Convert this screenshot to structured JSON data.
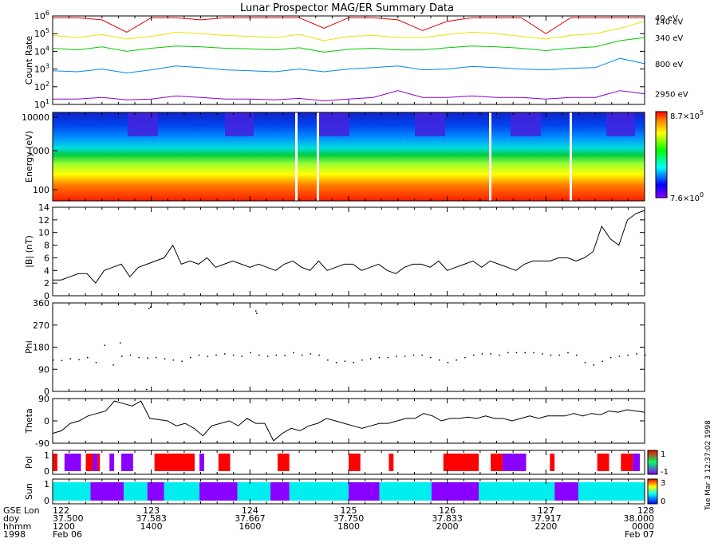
{
  "title": "Lunar Prospector MAG/ER Summary Data",
  "chart_data": [
    {
      "type": "line",
      "id": "count_rate",
      "ylabel": "Count Rate",
      "y_scale": "log",
      "ylim": [
        10,
        1000000
      ],
      "y_ticks": [
        {
          "base": "10",
          "exp": "1"
        },
        {
          "base": "10",
          "exp": "2"
        },
        {
          "base": "10",
          "exp": "3"
        },
        {
          "base": "10",
          "exp": "4"
        },
        {
          "base": "10",
          "exp": "5"
        },
        {
          "base": "10",
          "exp": "6"
        }
      ],
      "series": [
        {
          "name": "40 eV",
          "color": "#dd0000",
          "values": [
            800000,
            800000,
            600000,
            120000,
            800000,
            800000,
            600000,
            800000,
            800000,
            800000,
            800000,
            200000,
            800000,
            800000,
            600000,
            150000,
            500000,
            800000,
            800000,
            800000,
            100000,
            800000,
            800000,
            800000,
            800000
          ]
        },
        {
          "name": "140 eV",
          "color": "#e6e600",
          "values": [
            80000,
            60000,
            90000,
            50000,
            70000,
            120000,
            100000,
            80000,
            70000,
            60000,
            90000,
            40000,
            70000,
            80000,
            60000,
            60000,
            90000,
            120000,
            100000,
            70000,
            50000,
            80000,
            100000,
            200000,
            500000
          ]
        },
        {
          "name": "340 eV",
          "color": "#00cc00",
          "values": [
            15000,
            12000,
            18000,
            10000,
            15000,
            20000,
            18000,
            15000,
            14000,
            12000,
            16000,
            9000,
            13000,
            15000,
            12000,
            12000,
            16000,
            20000,
            18000,
            15000,
            11000,
            15000,
            18000,
            40000,
            60000
          ]
        },
        {
          "name": "800 eV",
          "color": "#0088ee",
          "values": [
            800,
            700,
            1000,
            600,
            900,
            1500,
            1200,
            900,
            800,
            700,
            1000,
            700,
            1000,
            1200,
            1500,
            900,
            1000,
            1400,
            1200,
            1000,
            900,
            1100,
            1200,
            4000,
            2000
          ]
        },
        {
          "name": "2950 eV",
          "color": "#8800cc",
          "values": [
            20,
            20,
            25,
            18,
            20,
            30,
            25,
            20,
            20,
            18,
            22,
            16,
            20,
            25,
            60,
            25,
            25,
            30,
            25,
            25,
            20,
            25,
            25,
            60,
            40
          ]
        }
      ]
    },
    {
      "type": "heatmap",
      "id": "energy_spectrogram",
      "ylabel": "Energy (eV)",
      "y_scale": "log",
      "y_tick_labels": [
        "100",
        "1000",
        "10000"
      ],
      "colorbar": {
        "max_base": "8.7×10",
        "max_exp": "5",
        "min_base": "7.6×10",
        "min_exp": "0"
      }
    },
    {
      "type": "line",
      "id": "B_magnitude",
      "ylabel": "|B| (nT)",
      "ylim": [
        0,
        14
      ],
      "y_tick_labels": [
        "0",
        "2",
        "4",
        "6",
        "8",
        "10",
        "12",
        "14"
      ],
      "values": [
        2.5,
        2.5,
        3,
        3.5,
        3.5,
        2,
        4,
        4.5,
        5,
        3,
        4.5,
        5,
        5.5,
        6,
        8,
        5,
        5.5,
        5,
        6,
        4.5,
        5,
        5.5,
        5,
        4.5,
        5,
        4.5,
        4,
        5,
        5.5,
        4.5,
        4,
        5.5,
        4,
        4.5,
        5,
        5,
        4,
        4.5,
        5,
        4,
        3.5,
        4.5,
        5,
        5,
        4.5,
        5.5,
        4,
        4.5,
        5,
        5.5,
        4.5,
        5.5,
        5,
        4.5,
        4,
        5,
        5.5,
        5.5,
        5.5,
        6,
        6,
        5.5,
        6,
        7,
        11,
        9,
        8,
        12,
        13,
        13.5
      ]
    },
    {
      "type": "scatter",
      "id": "phi",
      "ylabel": "Phi",
      "ylim": [
        0,
        360
      ],
      "y_tick_labels": [
        "0",
        "90",
        "180",
        "270",
        "360"
      ],
      "values": [
        130,
        128,
        135,
        132,
        140,
        120,
        190,
        110,
        145,
        150,
        140,
        138,
        140,
        135,
        130,
        125,
        140,
        150,
        145,
        150,
        155,
        150,
        145,
        160,
        150,
        145,
        150,
        148,
        160,
        150,
        155,
        150,
        130,
        120,
        125,
        120,
        130,
        135,
        140,
        140,
        145,
        145,
        150,
        150,
        140,
        130,
        120,
        130,
        140,
        150,
        155,
        155,
        150,
        160,
        160,
        160,
        160,
        155,
        150,
        150,
        160,
        150,
        120,
        110,
        125,
        140,
        145,
        150,
        155,
        150
      ],
      "outliers": [
        10,
        340,
        345,
        330,
        320,
        200
      ]
    },
    {
      "type": "line",
      "id": "theta",
      "ylabel": "Theta",
      "ylim": [
        -90,
        90
      ],
      "y_tick_labels": [
        "-90",
        "0",
        "90"
      ],
      "values": [
        -50,
        -40,
        -10,
        0,
        20,
        30,
        40,
        80,
        70,
        60,
        80,
        10,
        5,
        0,
        -20,
        -10,
        -30,
        -60,
        -20,
        -10,
        0,
        -20,
        10,
        -10,
        -10,
        -80,
        -50,
        -30,
        -40,
        -20,
        -10,
        10,
        0,
        -10,
        -20,
        -30,
        -20,
        -10,
        -10,
        0,
        10,
        10,
        30,
        20,
        0,
        10,
        10,
        15,
        10,
        20,
        10,
        10,
        0,
        10,
        20,
        10,
        20,
        20,
        20,
        30,
        20,
        30,
        25,
        40,
        35,
        45,
        40,
        35
      ]
    },
    {
      "type": "bar",
      "id": "polarity",
      "ylabel": "Pol",
      "left_tick_labels": [
        "0",
        "1"
      ],
      "colorbar_ticks": [
        "1",
        "-1"
      ],
      "colors": {
        "1": "#ff0000",
        "0": "#ffffff",
        "-1": "#8a00ff"
      },
      "segments": [
        [
          0,
          2,
          1
        ],
        [
          2,
          5,
          0
        ],
        [
          5,
          12,
          -1
        ],
        [
          12,
          14,
          0
        ],
        [
          14,
          17,
          1
        ],
        [
          17,
          19,
          -1
        ],
        [
          19,
          20,
          1
        ],
        [
          20,
          24,
          0
        ],
        [
          24,
          26,
          -1
        ],
        [
          26,
          29,
          0
        ],
        [
          29,
          34,
          -1
        ],
        [
          34,
          43,
          0
        ],
        [
          43,
          60,
          1
        ],
        [
          60,
          62,
          0
        ],
        [
          62,
          64,
          -1
        ],
        [
          64,
          70,
          0
        ],
        [
          70,
          75,
          1
        ],
        [
          75,
          95,
          0
        ],
        [
          95,
          100,
          1
        ],
        [
          100,
          125,
          0
        ],
        [
          125,
          130,
          1
        ],
        [
          130,
          142,
          0
        ],
        [
          142,
          144,
          1
        ],
        [
          144,
          165,
          0
        ],
        [
          165,
          180,
          1
        ],
        [
          180,
          185,
          0
        ],
        [
          185,
          190,
          1
        ],
        [
          190,
          200,
          -1
        ],
        [
          200,
          210,
          0
        ],
        [
          210,
          212,
          1
        ],
        [
          212,
          230,
          0
        ],
        [
          230,
          235,
          1
        ],
        [
          235,
          240,
          0
        ],
        [
          240,
          245,
          1
        ],
        [
          245,
          248,
          -1
        ],
        [
          248,
          250,
          0
        ]
      ]
    },
    {
      "type": "bar",
      "id": "sun",
      "ylabel": "Sun",
      "left_tick_labels": [
        "0",
        "1"
      ],
      "colorbar_ticks": [
        "3",
        "0"
      ],
      "colors": {
        "3": "#00eeee",
        "0": "#8a00ff"
      },
      "segments": [
        [
          0,
          16,
          3
        ],
        [
          16,
          30,
          0
        ],
        [
          30,
          40,
          3
        ],
        [
          40,
          47,
          0
        ],
        [
          47,
          62,
          3
        ],
        [
          62,
          78,
          0
        ],
        [
          78,
          92,
          3
        ],
        [
          92,
          100,
          0
        ],
        [
          100,
          125,
          3
        ],
        [
          125,
          138,
          0
        ],
        [
          138,
          160,
          3
        ],
        [
          160,
          180,
          0
        ],
        [
          180,
          212,
          3
        ],
        [
          212,
          222,
          0
        ],
        [
          222,
          250,
          3
        ]
      ]
    }
  ],
  "x_axis": {
    "row_labels": [
      "GSE Lon",
      "doy",
      "hhmm",
      "1998"
    ],
    "ticks": [
      {
        "lon": "122",
        "doy": "37.500",
        "hhmm": "1200",
        "date": "Feb 06"
      },
      {
        "lon": "123",
        "doy": "37.583",
        "hhmm": "1400",
        "date": ""
      },
      {
        "lon": "124",
        "doy": "37.667",
        "hhmm": "1600",
        "date": ""
      },
      {
        "lon": "125",
        "doy": "37.750",
        "hhmm": "1800",
        "date": ""
      },
      {
        "lon": "126",
        "doy": "37.833",
        "hhmm": "2000",
        "date": ""
      },
      {
        "lon": "127",
        "doy": "37.917",
        "hhmm": "2200",
        "date": ""
      },
      {
        "lon": "128",
        "doy": "38.000",
        "hhmm": "0000",
        "date": "Feb 07"
      }
    ]
  },
  "side_note": "Tue Mar 3 12:37:02 1998",
  "colors": {
    "frame": "#000000",
    "background": "#ffffff"
  }
}
